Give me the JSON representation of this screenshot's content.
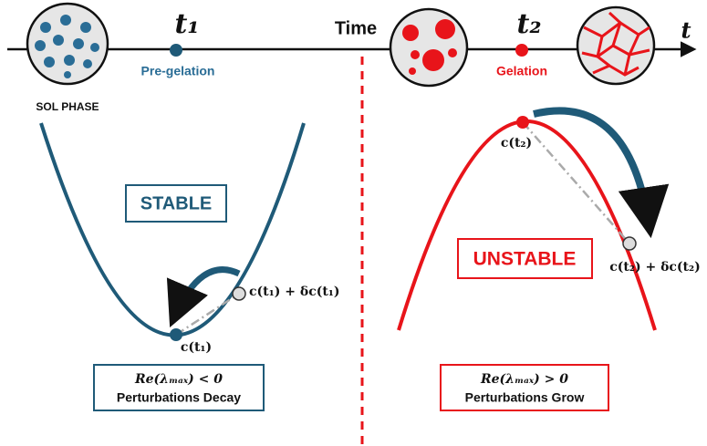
{
  "timeline": {
    "sol_label": "SOL PHASE",
    "t1": "t₁",
    "pre_label": "Pre-gelation",
    "time_label": "Time",
    "t2": "t₂",
    "gel_label": "Gelation",
    "axis_label": "t"
  },
  "stable": {
    "title": "STABLE",
    "point": "c(t₁)",
    "perturbed": "c(t₁) + δc(t₁)",
    "condition": "Re(λₘₐₓ) < 0",
    "result": "Perturbations Decay"
  },
  "unstable": {
    "title": "UNSTABLE",
    "point": "c(t₂)",
    "perturbed": "c(t₂) + δc(t₂)",
    "condition": "Re(λₘₐₓ) > 0",
    "result": "Perturbations Grow"
  }
}
